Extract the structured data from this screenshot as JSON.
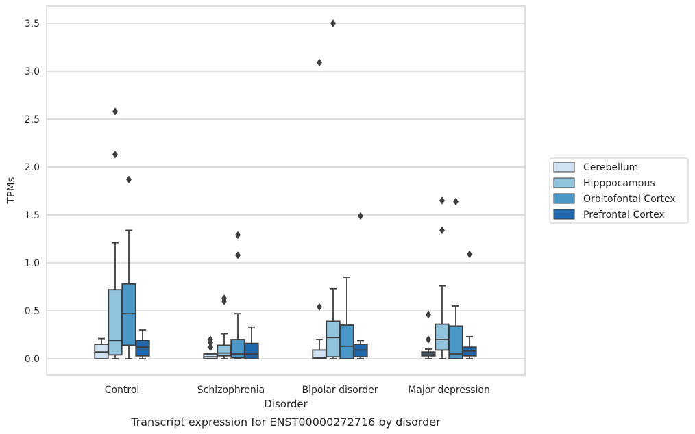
{
  "caption": "Transcript expression for ENST00000272716 by disorder",
  "chart_data": {
    "type": "box",
    "title": "",
    "xlabel": "Disorder",
    "ylabel": "TPMs",
    "ylim": [
      -0.17,
      3.68
    ],
    "yticks": [
      0.0,
      0.5,
      1.0,
      1.5,
      2.0,
      2.5,
      3.0,
      3.5
    ],
    "ytick_labels": [
      "0.0",
      "0.5",
      "1.0",
      "1.5",
      "2.0",
      "2.5",
      "3.0",
      "3.5"
    ],
    "grid": "horizontal",
    "legend_position": "right",
    "categories": [
      "Control",
      "Schizophrenia",
      "Bipolar disorder",
      "Major depression"
    ],
    "series": [
      {
        "name": "Cerebellum",
        "color": "#cfe1f2",
        "boxes": [
          {
            "whisker_low": 0.0,
            "q1": 0.0,
            "median": 0.07,
            "q3": 0.15,
            "whisker_high": 0.21,
            "outliers": []
          },
          {
            "whisker_low": 0.0,
            "q1": 0.0,
            "median": 0.02,
            "q3": 0.05,
            "whisker_high": 0.05,
            "outliers": [
              0.12,
              0.17,
              0.2
            ]
          },
          {
            "whisker_low": 0.0,
            "q1": 0.0,
            "median": 0.01,
            "q3": 0.09,
            "whisker_high": 0.2,
            "outliers": [
              0.54,
              3.09
            ]
          },
          {
            "whisker_low": 0.0,
            "q1": 0.03,
            "median": 0.05,
            "q3": 0.07,
            "whisker_high": 0.1,
            "outliers": [
              0.2,
              0.46
            ]
          }
        ]
      },
      {
        "name": "Hipppocampus",
        "color": "#93c4de",
        "boxes": [
          {
            "whisker_low": 0.0,
            "q1": 0.04,
            "median": 0.19,
            "q3": 0.72,
            "whisker_high": 1.21,
            "outliers": [
              2.13,
              2.58
            ]
          },
          {
            "whisker_low": 0.0,
            "q1": 0.03,
            "median": 0.06,
            "q3": 0.14,
            "whisker_high": 0.26,
            "outliers": [
              0.6,
              0.63
            ]
          },
          {
            "whisker_low": 0.0,
            "q1": 0.02,
            "median": 0.22,
            "q3": 0.39,
            "whisker_high": 0.73,
            "outliers": [
              3.5
            ]
          },
          {
            "whisker_low": 0.0,
            "q1": 0.09,
            "median": 0.2,
            "q3": 0.36,
            "whisker_high": 0.76,
            "outliers": [
              1.34,
              1.65
            ]
          }
        ]
      },
      {
        "name": "Orbitofontal Cortex",
        "color": "#4a98c9",
        "boxes": [
          {
            "whisker_low": 0.0,
            "q1": 0.14,
            "median": 0.47,
            "q3": 0.78,
            "whisker_high": 1.34,
            "outliers": [
              1.87
            ]
          },
          {
            "whisker_low": 0.0,
            "q1": 0.01,
            "median": 0.05,
            "q3": 0.2,
            "whisker_high": 0.47,
            "outliers": [
              1.08,
              1.29
            ]
          },
          {
            "whisker_low": 0.0,
            "q1": 0.0,
            "median": 0.13,
            "q3": 0.35,
            "whisker_high": 0.85,
            "outliers": []
          },
          {
            "whisker_low": 0.0,
            "q1": 0.0,
            "median": 0.05,
            "q3": 0.34,
            "whisker_high": 0.55,
            "outliers": [
              1.64
            ]
          }
        ]
      },
      {
        "name": "Prefrontal Cortex",
        "color": "#2068ae",
        "boxes": [
          {
            "whisker_low": 0.0,
            "q1": 0.03,
            "median": 0.12,
            "q3": 0.19,
            "whisker_high": 0.3,
            "outliers": []
          },
          {
            "whisker_low": 0.0,
            "q1": 0.0,
            "median": 0.05,
            "q3": 0.16,
            "whisker_high": 0.33,
            "outliers": []
          },
          {
            "whisker_low": 0.0,
            "q1": 0.02,
            "median": 0.09,
            "q3": 0.15,
            "whisker_high": 0.19,
            "outliers": [
              1.49
            ]
          },
          {
            "whisker_low": 0.0,
            "q1": 0.03,
            "median": 0.08,
            "q3": 0.12,
            "whisker_high": 0.23,
            "outliers": [
              1.09
            ]
          }
        ]
      }
    ]
  }
}
